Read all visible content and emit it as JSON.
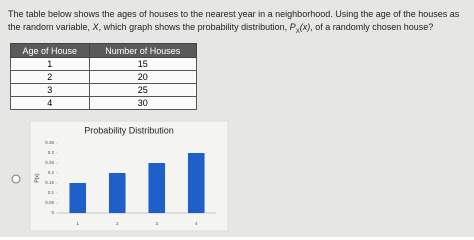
{
  "question": {
    "parts": [
      "The table below shows the ages of houses to the nearest year in a neighborhood. Using the age of the houses as the random variable, ",
      "X",
      ", which graph shows the probability distribution, ",
      "P",
      "X",
      "(x)",
      ", of a randomly chosen house?"
    ]
  },
  "table": {
    "header": [
      "Age of House",
      "Number of Houses"
    ],
    "rows": [
      [
        "1",
        "15"
      ],
      [
        "2",
        "20"
      ],
      [
        "3",
        "25"
      ],
      [
        "4",
        "30"
      ]
    ]
  },
  "chart_data": {
    "type": "bar",
    "title": "Probability Distribution",
    "y_label": "P(x)",
    "categories": [
      "1",
      "2",
      "3",
      "4"
    ],
    "values": [
      0.15,
      0.2,
      0.25,
      0.3
    ],
    "color": "#1f5fc9",
    "ylim": [
      0,
      0.35
    ],
    "yticks": [
      0,
      0.05,
      0.1,
      0.15,
      0.2,
      0.25,
      0.3,
      0.35
    ],
    "grid": false
  }
}
